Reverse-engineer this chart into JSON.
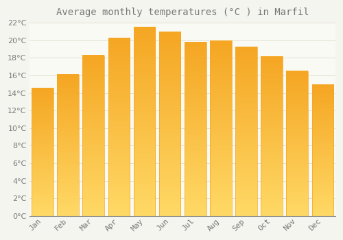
{
  "title": "Average monthly temperatures (°C ) in Marfil",
  "months": [
    "Jan",
    "Feb",
    "Mar",
    "Apr",
    "May",
    "Jun",
    "Jul",
    "Aug",
    "Sep",
    "Oct",
    "Nov",
    "Dec"
  ],
  "values": [
    14.6,
    16.1,
    18.3,
    20.3,
    21.5,
    21.0,
    19.8,
    20.0,
    19.3,
    18.2,
    16.5,
    15.0
  ],
  "bar_color_left": "#F5A623",
  "bar_color_right": "#FFD966",
  "bar_color_mid": "#FFBE2E",
  "background_color": "#F5F5F0",
  "plot_bg_color": "#FAFAF5",
  "grid_color": "#DDDDCC",
  "text_color": "#777777",
  "ylim": [
    0,
    22
  ],
  "ytick_step": 2,
  "title_fontsize": 10,
  "tick_fontsize": 8,
  "bar_width": 0.85
}
